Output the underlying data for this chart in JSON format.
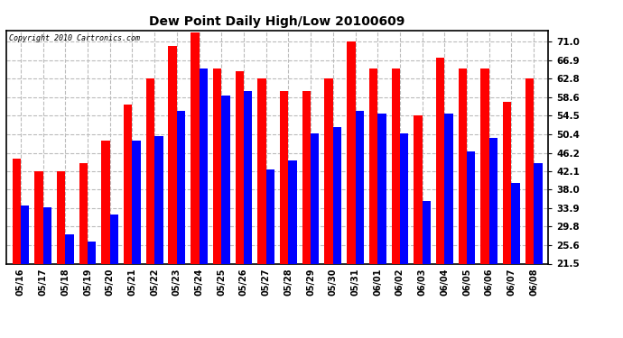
{
  "title": "Dew Point Daily High/Low 20100609",
  "copyright": "Copyright 2010 Cartronics.com",
  "dates": [
    "05/16",
    "05/17",
    "05/18",
    "05/19",
    "05/20",
    "05/21",
    "05/22",
    "05/23",
    "05/24",
    "05/25",
    "05/26",
    "05/27",
    "05/28",
    "05/29",
    "05/30",
    "05/31",
    "06/01",
    "06/02",
    "06/03",
    "06/04",
    "06/05",
    "06/06",
    "06/07",
    "06/08"
  ],
  "highs": [
    45.0,
    42.0,
    42.0,
    44.0,
    49.0,
    57.0,
    62.8,
    70.0,
    73.0,
    65.0,
    64.5,
    62.8,
    60.0,
    60.0,
    62.8,
    71.0,
    65.0,
    65.0,
    54.5,
    67.5,
    65.0,
    65.0,
    57.5,
    62.8
  ],
  "lows": [
    34.5,
    34.0,
    28.0,
    26.5,
    32.5,
    49.0,
    50.0,
    55.5,
    65.0,
    59.0,
    60.0,
    42.5,
    44.5,
    50.5,
    52.0,
    55.5,
    55.0,
    50.5,
    35.5,
    55.0,
    46.5,
    49.5,
    39.5,
    44.0
  ],
  "high_color": "#ff0000",
  "low_color": "#0000ff",
  "bg_color": "#ffffff",
  "grid_color": "#bbbbbb",
  "yticks": [
    71.0,
    66.9,
    62.8,
    58.6,
    54.5,
    50.4,
    46.2,
    42.1,
    38.0,
    33.9,
    29.8,
    25.6,
    21.5
  ],
  "ymin": 21.5,
  "ymax": 73.5,
  "bar_width": 0.38
}
